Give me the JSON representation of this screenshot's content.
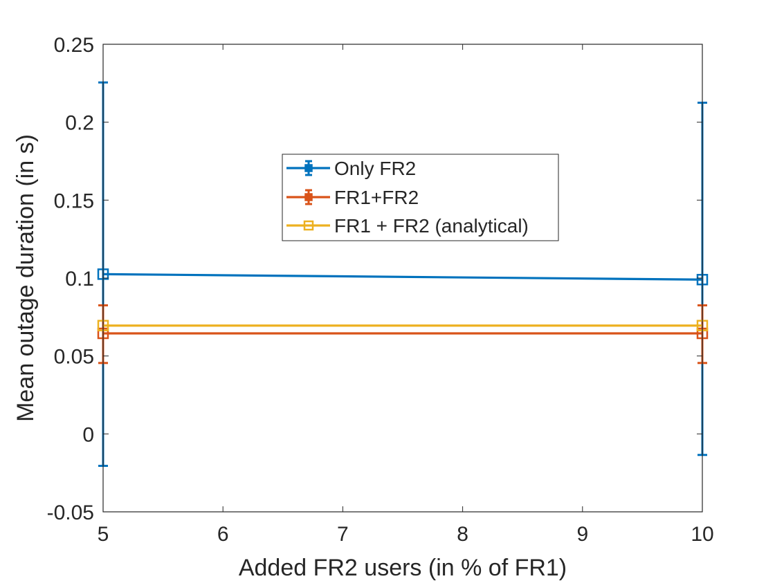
{
  "chart_data": {
    "type": "line",
    "xlabel": "Added FR2 users (in % of FR1)",
    "ylabel": "Mean outage duration (in s)",
    "xlim": [
      5,
      10
    ],
    "ylim": [
      -0.05,
      0.25
    ],
    "xticks": [
      "5",
      "6",
      "7",
      "8",
      "9",
      "10"
    ],
    "yticks": [
      "-0.05",
      "0",
      "0.05",
      "0.1",
      "0.15",
      "0.2",
      "0.25"
    ],
    "grid": false,
    "legend_position": "center-top",
    "series": [
      {
        "name": "Only FR2",
        "color": "#0072BD",
        "x": [
          5,
          10
        ],
        "y": [
          0.1025,
          0.099
        ],
        "error_low": [
          -0.0205,
          -0.0135
        ],
        "error_high": [
          0.2255,
          0.2125
        ]
      },
      {
        "name": "FR1+FR2",
        "color": "#D95319",
        "x": [
          5,
          10
        ],
        "y": [
          0.0645,
          0.0645
        ],
        "error_low": [
          0.0455,
          0.0455
        ],
        "error_high": [
          0.0825,
          0.0825
        ]
      },
      {
        "name": "FR1 + FR2 (analytical)",
        "color": "#EDB120",
        "x": [
          5,
          10
        ],
        "y": [
          0.0695,
          0.0695
        ]
      }
    ]
  }
}
